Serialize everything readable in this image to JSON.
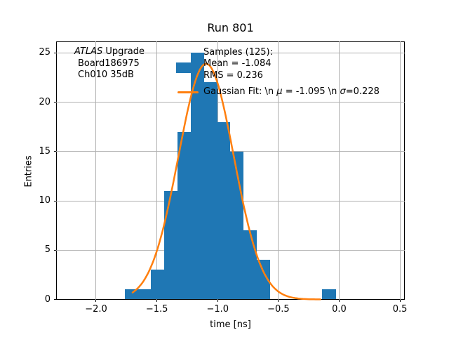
{
  "title": "Run 801",
  "annotation": {
    "line1_italic": "ATLAS",
    "line1_rest": " Upgrade",
    "line2": "Board186975",
    "line3": "Ch010 35dB"
  },
  "legend": {
    "samples_line1": "Samples (125):",
    "samples_line2": " Mean = -1.084",
    "samples_line3": " RMS = 0.236",
    "gauss_parts": [
      "Gaussian Fit: \\n ",
      "μ",
      " = -1.095 \\n ",
      "σ",
      "=0.228"
    ]
  },
  "chart_data": {
    "type": "bar",
    "subtype": "histogram-with-gaussian-fit",
    "title": "Run 801",
    "xlabel": "time [ns]",
    "ylabel": "Entries",
    "x_ticks": [
      -2.0,
      -1.5,
      -1.0,
      -0.5,
      0.0,
      0.5
    ],
    "x_tick_labels": [
      "−2.0",
      "−1.5",
      "−1.0",
      "−0.5",
      "0.0",
      "0.5"
    ],
    "y_ticks": [
      0,
      5,
      10,
      15,
      20,
      25
    ],
    "y_tick_labels": [
      "0",
      "5",
      "10",
      "15",
      "20",
      "25"
    ],
    "xlim": [
      -2.329,
      0.538
    ],
    "ylim": [
      0,
      26.2
    ],
    "grid": true,
    "grid_color": "#b0b0b0",
    "legend_position": "upper right area, frameless",
    "hist": {
      "series_name": "Samples (125): Mean = -1.084 RMS = 0.236",
      "total_samples": 125,
      "mean": -1.084,
      "rms": 0.236,
      "color": "#1f77b4",
      "bin_edges": [
        -1.765,
        -1.6566,
        -1.5482,
        -1.4398,
        -1.3314,
        -1.223,
        -1.1146,
        -1.0062,
        -0.8978,
        -0.7894,
        -0.681,
        -0.5726,
        -0.4642,
        -0.3558,
        -0.2474,
        -0.139,
        -0.0306
      ],
      "counts": [
        1,
        1,
        3,
        11,
        17,
        25,
        22,
        18,
        15,
        7,
        4,
        0,
        0,
        0,
        0,
        1
      ]
    },
    "gauss_fit": {
      "series_name": "Gaussian Fit: \\n μ = -1.095 \\n σ=0.228",
      "mu": -1.095,
      "sigma": 0.228,
      "amplitude": 23.9,
      "x_start": -1.7,
      "x_end": -0.155,
      "color": "#ff7f0e",
      "linewidth": 2.5
    }
  }
}
